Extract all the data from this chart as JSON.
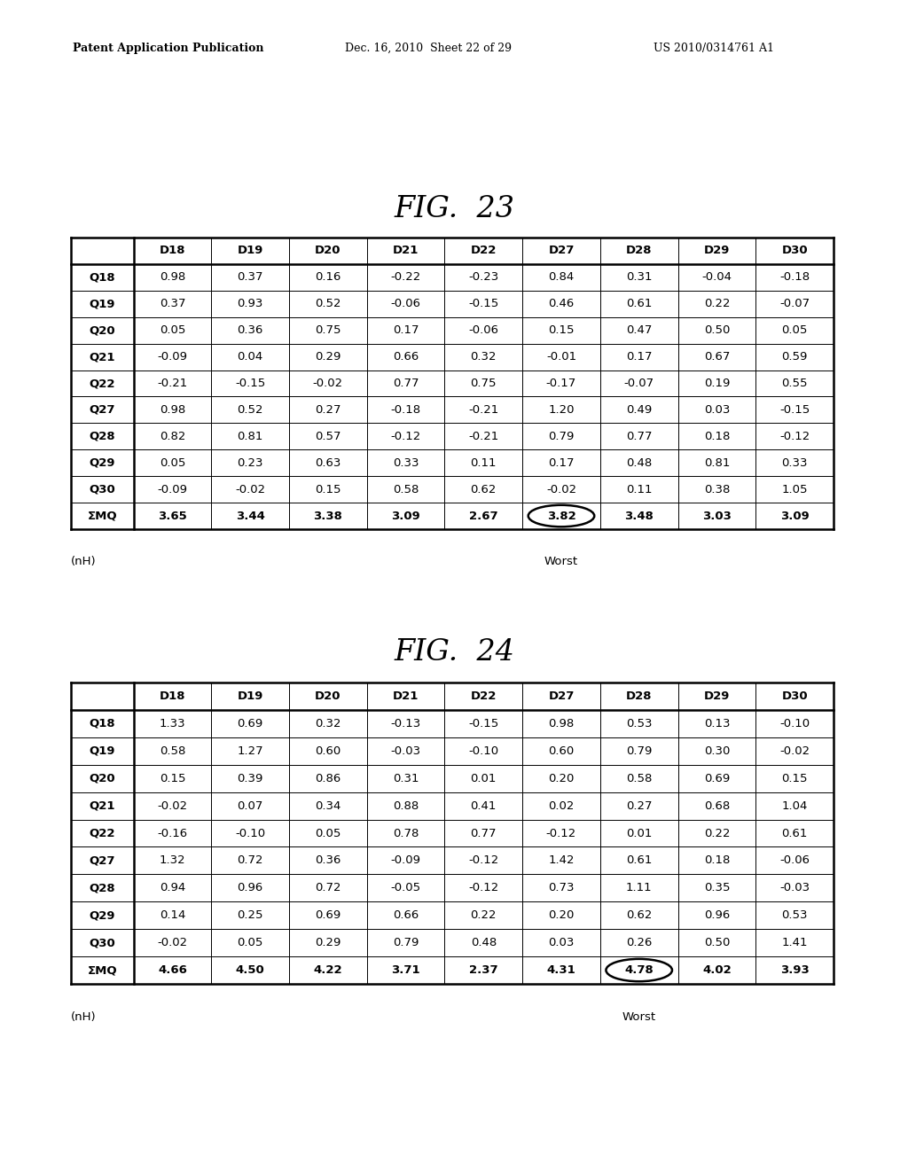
{
  "header_left": "Patent Application Publication",
  "header_mid": "Dec. 16, 2010  Sheet 22 of 29",
  "header_right": "US 2010/0314761 A1",
  "fig23_title": "FIG.  23",
  "fig24_title": "FIG.  24",
  "col_headers": [
    "",
    "D18",
    "D19",
    "D20",
    "D21",
    "D22",
    "D27",
    "D28",
    "D29",
    "D30"
  ],
  "fig23_row_headers": [
    "Q18",
    "Q19",
    "Q20",
    "Q21",
    "Q22",
    "Q27",
    "Q28",
    "Q29",
    "Q30",
    "ΣMQ"
  ],
  "fig23_data": [
    [
      "0.98",
      "0.37",
      "0.16",
      "-0.22",
      "-0.23",
      "0.84",
      "0.31",
      "-0.04",
      "-0.18"
    ],
    [
      "0.37",
      "0.93",
      "0.52",
      "-0.06",
      "-0.15",
      "0.46",
      "0.61",
      "0.22",
      "-0.07"
    ],
    [
      "0.05",
      "0.36",
      "0.75",
      "0.17",
      "-0.06",
      "0.15",
      "0.47",
      "0.50",
      "0.05"
    ],
    [
      "-0.09",
      "0.04",
      "0.29",
      "0.66",
      "0.32",
      "-0.01",
      "0.17",
      "0.67",
      "0.59"
    ],
    [
      "-0.21",
      "-0.15",
      "-0.02",
      "0.77",
      "0.75",
      "-0.17",
      "-0.07",
      "0.19",
      "0.55"
    ],
    [
      "0.98",
      "0.52",
      "0.27",
      "-0.18",
      "-0.21",
      "1.20",
      "0.49",
      "0.03",
      "-0.15"
    ],
    [
      "0.82",
      "0.81",
      "0.57",
      "-0.12",
      "-0.21",
      "0.79",
      "0.77",
      "0.18",
      "-0.12"
    ],
    [
      "0.05",
      "0.23",
      "0.63",
      "0.33",
      "0.11",
      "0.17",
      "0.48",
      "0.81",
      "0.33"
    ],
    [
      "-0.09",
      "-0.02",
      "0.15",
      "0.58",
      "0.62",
      "-0.02",
      "0.11",
      "0.38",
      "1.05"
    ],
    [
      "3.65",
      "3.44",
      "3.38",
      "3.09",
      "2.67",
      "3.82",
      "3.48",
      "3.03",
      "3.09"
    ]
  ],
  "fig23_circle_col": 5,
  "fig23_circle_row": 9,
  "fig24_row_headers": [
    "Q18",
    "Q19",
    "Q20",
    "Q21",
    "Q22",
    "Q27",
    "Q28",
    "Q29",
    "Q30",
    "ΣMQ"
  ],
  "fig24_data": [
    [
      "1.33",
      "0.69",
      "0.32",
      "-0.13",
      "-0.15",
      "0.98",
      "0.53",
      "0.13",
      "-0.10"
    ],
    [
      "0.58",
      "1.27",
      "0.60",
      "-0.03",
      "-0.10",
      "0.60",
      "0.79",
      "0.30",
      "-0.02"
    ],
    [
      "0.15",
      "0.39",
      "0.86",
      "0.31",
      "0.01",
      "0.20",
      "0.58",
      "0.69",
      "0.15"
    ],
    [
      "-0.02",
      "0.07",
      "0.34",
      "0.88",
      "0.41",
      "0.02",
      "0.27",
      "0.68",
      "1.04"
    ],
    [
      "-0.16",
      "-0.10",
      "0.05",
      "0.78",
      "0.77",
      "-0.12",
      "0.01",
      "0.22",
      "0.61"
    ],
    [
      "1.32",
      "0.72",
      "0.36",
      "-0.09",
      "-0.12",
      "1.42",
      "0.61",
      "0.18",
      "-0.06"
    ],
    [
      "0.94",
      "0.96",
      "0.72",
      "-0.05",
      "-0.12",
      "0.73",
      "1.11",
      "0.35",
      "-0.03"
    ],
    [
      "0.14",
      "0.25",
      "0.69",
      "0.66",
      "0.22",
      "0.20",
      "0.62",
      "0.96",
      "0.53"
    ],
    [
      "-0.02",
      "0.05",
      "0.29",
      "0.79",
      "0.48",
      "0.03",
      "0.26",
      "0.50",
      "1.41"
    ],
    [
      "4.66",
      "4.50",
      "4.22",
      "3.71",
      "2.37",
      "4.31",
      "4.78",
      "4.02",
      "3.93"
    ]
  ],
  "fig24_circle_col": 6,
  "fig24_circle_row": 9,
  "unit_label": "(nH)",
  "worst_label": "Worst",
  "bg_color": "#ffffff",
  "text_color": "#000000"
}
